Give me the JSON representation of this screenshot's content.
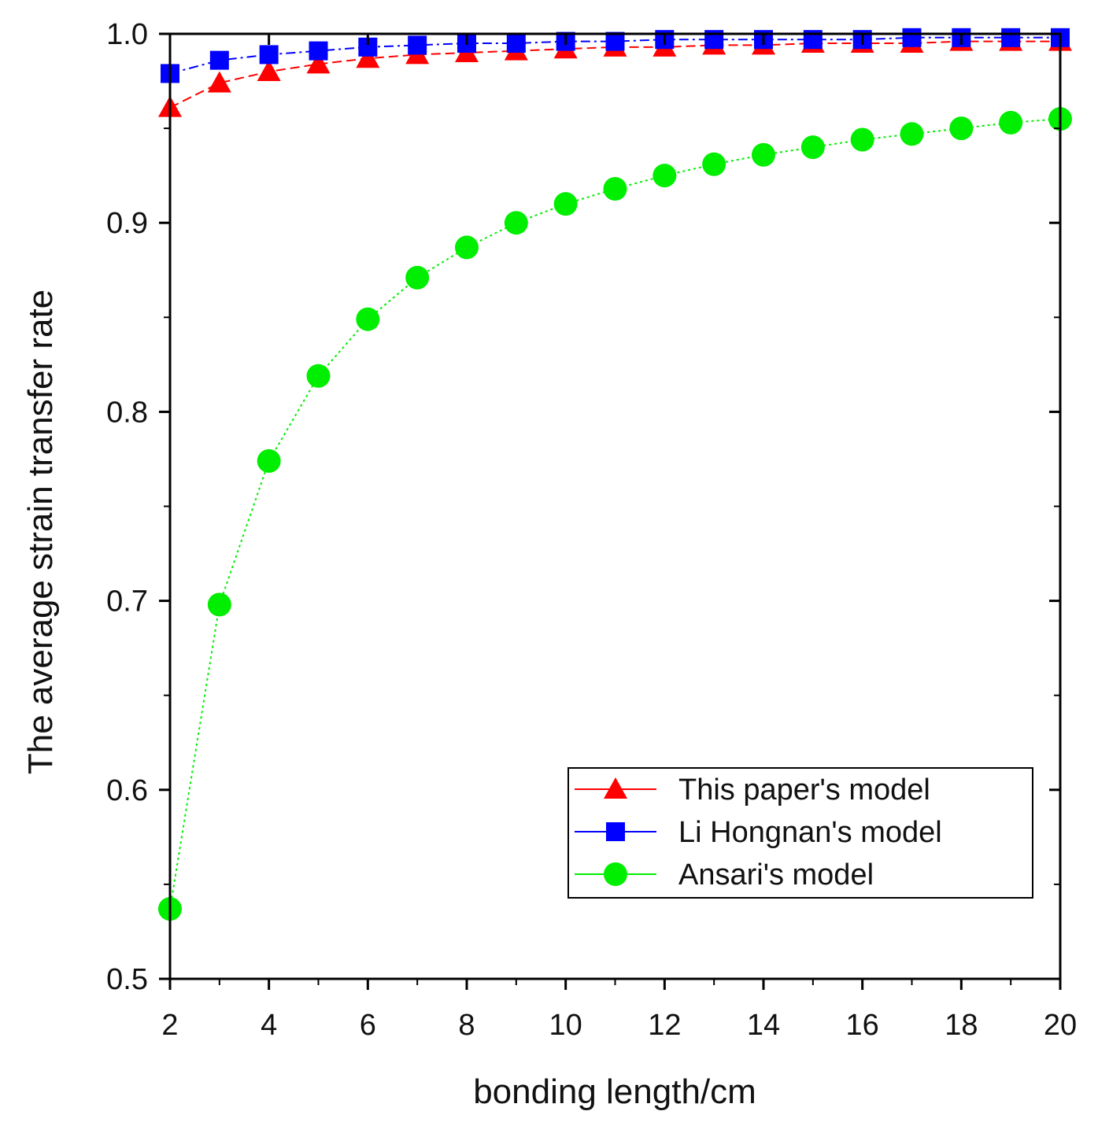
{
  "chart_data": {
    "type": "line",
    "title": "",
    "xlabel": "bonding length/cm",
    "ylabel": "The average strain transfer rate",
    "xlim": [
      2,
      20
    ],
    "ylim": [
      0.5,
      1.0
    ],
    "x_ticks": [
      2,
      4,
      6,
      8,
      10,
      12,
      14,
      16,
      18,
      20
    ],
    "x_tick_labels": [
      "2",
      "4",
      "6",
      "8",
      "10",
      "12",
      "14",
      "16",
      "18",
      "20"
    ],
    "y_ticks": [
      0.5,
      0.6,
      0.7,
      0.8,
      0.9,
      1.0
    ],
    "y_tick_labels": [
      "0.5",
      "0.6",
      "0.7",
      "0.8",
      "0.9",
      "1.0"
    ],
    "grid": false,
    "legend_position": "bottom-right",
    "x": [
      2,
      3,
      4,
      5,
      6,
      7,
      8,
      9,
      10,
      11,
      12,
      13,
      14,
      15,
      16,
      17,
      18,
      19,
      20
    ],
    "series": [
      {
        "name": "This paper's model",
        "color": "#ff0000",
        "marker": "triangle",
        "line_style": "dashed",
        "values": [
          0.961,
          0.974,
          0.98,
          0.984,
          0.987,
          0.989,
          0.99,
          0.991,
          0.992,
          0.993,
          0.993,
          0.994,
          0.994,
          0.995,
          0.995,
          0.995,
          0.996,
          0.996,
          0.996
        ]
      },
      {
        "name": "Li Hongnan's model",
        "color": "#0000ff",
        "marker": "square",
        "line_style": "dashdot",
        "values": [
          0.979,
          0.986,
          0.989,
          0.991,
          0.993,
          0.994,
          0.995,
          0.995,
          0.996,
          0.996,
          0.997,
          0.997,
          0.997,
          0.997,
          0.997,
          0.998,
          0.998,
          0.998,
          0.998
        ]
      },
      {
        "name": "Ansari's model",
        "color": "#00ee00",
        "marker": "circle",
        "line_style": "dotted",
        "values": [
          0.537,
          0.698,
          0.774,
          0.819,
          0.849,
          0.871,
          0.887,
          0.9,
          0.91,
          0.918,
          0.925,
          0.931,
          0.936,
          0.94,
          0.944,
          0.947,
          0.95,
          0.953,
          0.955
        ]
      }
    ]
  }
}
